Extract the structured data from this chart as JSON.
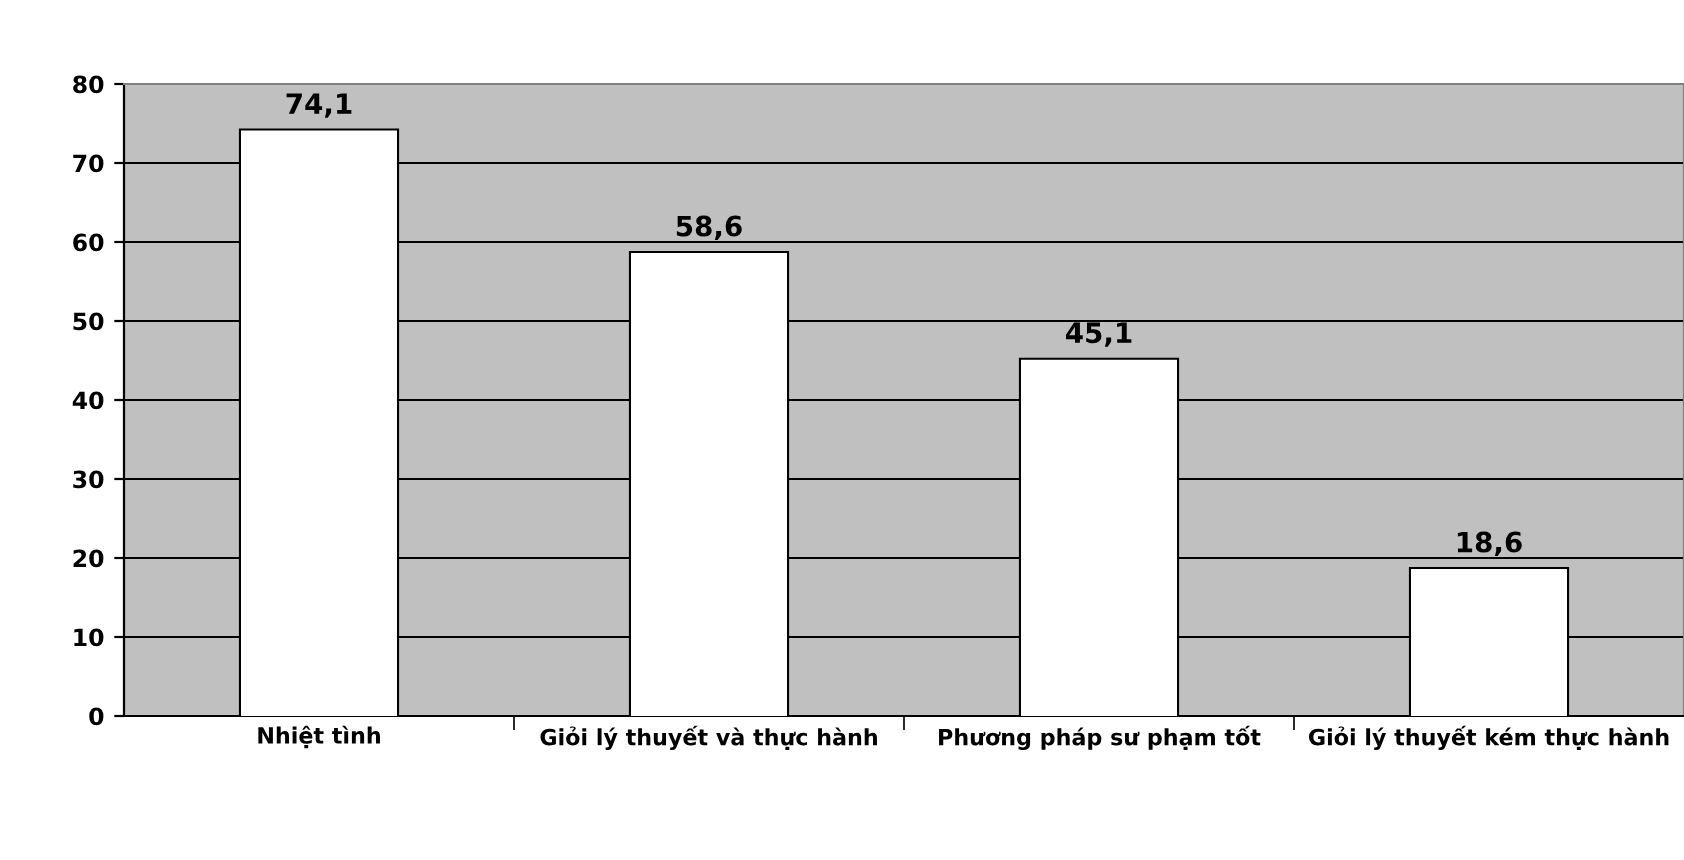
{
  "chart_data": {
    "type": "bar",
    "categories": [
      "Nhiệt tình",
      "Giỏi lý thuyết và thực hành",
      "Phương pháp sư phạm tốt",
      "Giỏi lý thuyết kém thực hành"
    ],
    "values": [
      74.1,
      58.6,
      45.1,
      18.6
    ],
    "value_labels": [
      "74,1",
      "58,6",
      "45,1",
      "18,6"
    ],
    "color": "#ffffff",
    "ylim": [
      0,
      80
    ],
    "yticks": [
      0,
      10,
      20,
      30,
      40,
      50,
      60,
      70,
      80
    ],
    "grid": "y"
  }
}
